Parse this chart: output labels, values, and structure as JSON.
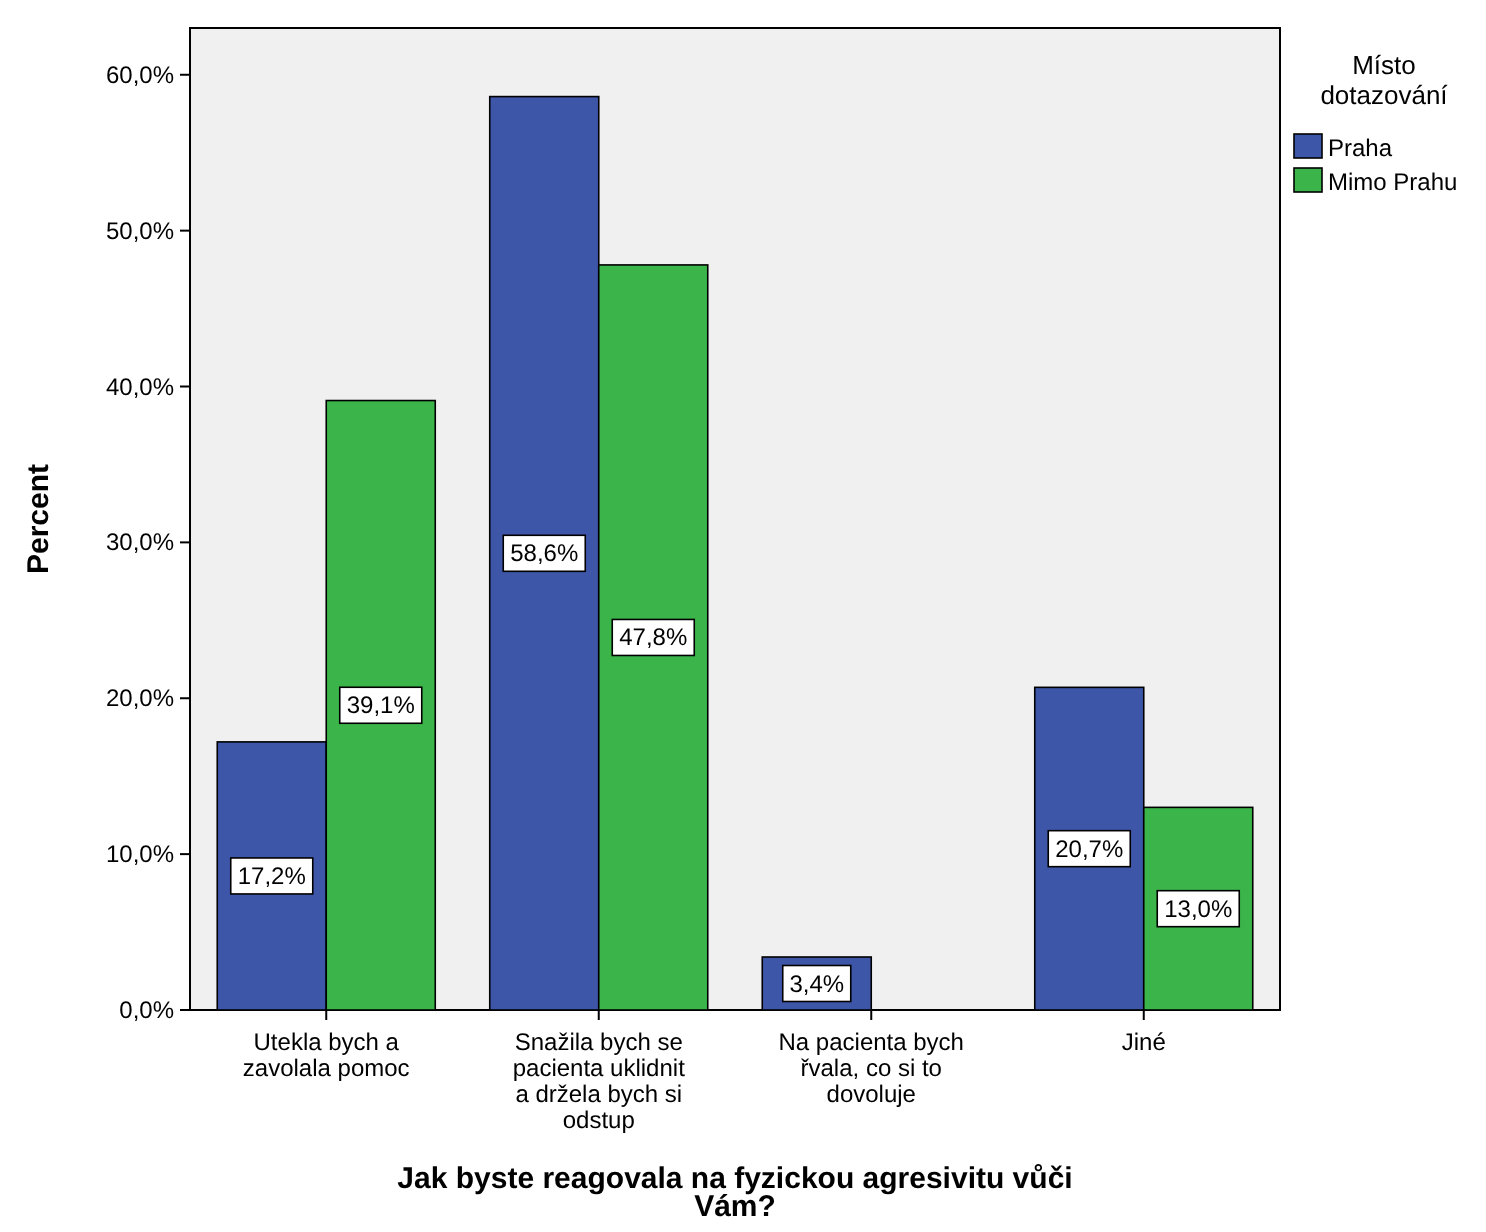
{
  "chart_data": {
    "type": "bar",
    "xlabel": "Jak byste reagovala na fyzickou agresivitu vůči Vám?",
    "ylabel": "Percent",
    "legend_title": "Místo dotazování",
    "legend": "top right",
    "categories": [
      "Utekla bych a zavolala pomoc",
      "Snažila bych se pacienta uklidnit a držela bych si odstup",
      "Na pacienta bych řvala, co si to dovoluje",
      "Jiné"
    ],
    "series": [
      {
        "name": "Praha",
        "color": "#3d56a8",
        "values": [
          17.2,
          58.6,
          3.4,
          20.7
        ],
        "value_labels": [
          "17,2%",
          "58,6%",
          "3,4%",
          "20,7%"
        ]
      },
      {
        "name": "Mimo Prahu",
        "color": "#3bb54a",
        "values": [
          39.1,
          47.8,
          0,
          13.0
        ],
        "value_labels": [
          "39,1%",
          "47,8%",
          null,
          "13,0%"
        ]
      }
    ],
    "ylim": [
      0,
      63
    ],
    "yticks": [
      {
        "value": 0,
        "label": "0,0%"
      },
      {
        "value": 10,
        "label": "10,0%"
      },
      {
        "value": 20,
        "label": "20,0%"
      },
      {
        "value": 30,
        "label": "30,0%"
      },
      {
        "value": 40,
        "label": "40,0%"
      },
      {
        "value": 50,
        "label": "50,0%"
      },
      {
        "value": 60,
        "label": "60,0%"
      }
    ]
  }
}
